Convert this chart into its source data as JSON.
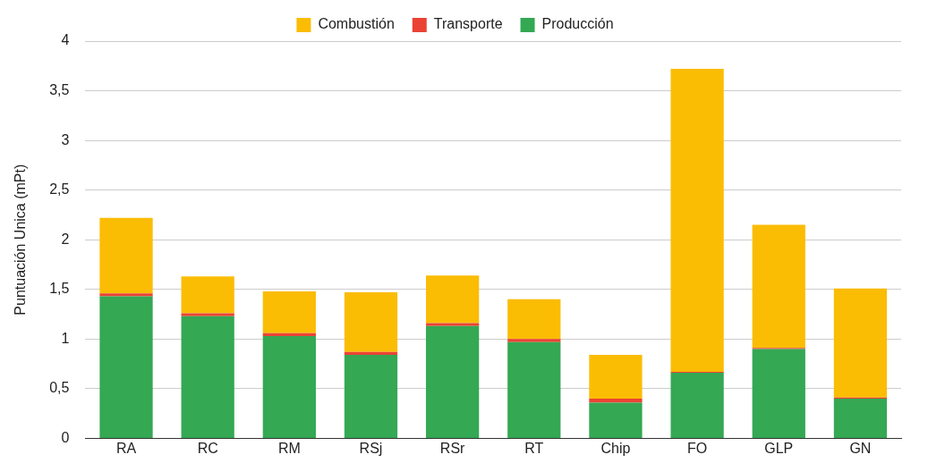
{
  "chart_data": {
    "type": "bar",
    "stacked": true,
    "ylabel": "Puntuación Unica (mPt)",
    "categories": [
      "RA",
      "RC",
      "RM",
      "RSj",
      "RSr",
      "RT",
      "Chip",
      "FO",
      "GLP",
      "GN"
    ],
    "series": [
      {
        "name": "Producción",
        "color": "#34a853",
        "values": [
          1.43,
          1.23,
          1.03,
          0.84,
          1.13,
          0.97,
          0.36,
          0.66,
          0.9,
          0.4
        ]
      },
      {
        "name": "Transporte",
        "color": "#ea4335",
        "values": [
          0.03,
          0.03,
          0.03,
          0.03,
          0.03,
          0.03,
          0.04,
          0.01,
          0.01,
          0.01
        ]
      },
      {
        "name": "Combustión",
        "color": "#fbbc04",
        "values": [
          0.76,
          0.37,
          0.42,
          0.6,
          0.48,
          0.4,
          0.44,
          3.05,
          1.24,
          1.1
        ]
      }
    ],
    "ylim": [
      0,
      4
    ],
    "yticks": [
      0,
      {
        "value": 0.5,
        "label": "0,5"
      },
      1,
      {
        "value": 1.5,
        "label": "1,5"
      },
      2,
      {
        "value": 2.5,
        "label": "2,5"
      },
      3,
      {
        "value": 3.5,
        "label": "3,5"
      },
      4
    ],
    "grid": "y",
    "legend": "top"
  }
}
